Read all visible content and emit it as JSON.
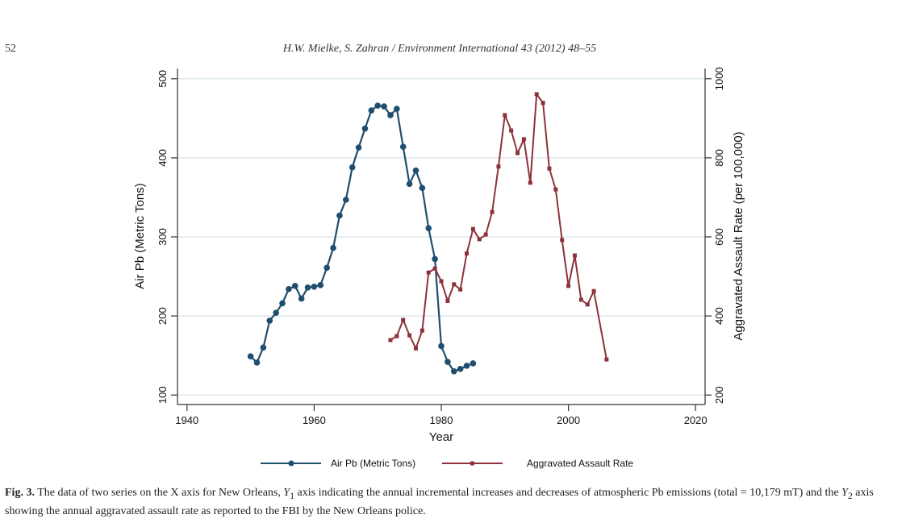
{
  "header": {
    "page_number": "52",
    "running_head": "H.W. Mielke, S. Zahran / Environment International 43 (2012) 48–55"
  },
  "caption": {
    "label": "Fig. 3.",
    "text_part1": " The data of two series on the X axis for New Orleans, ",
    "y1_symbol": "Y",
    "y1_sub": "1",
    "text_part2": " axis indicating the annual incremental increases and decreases of atmospheric Pb emissions (total = 10,179 mT) and the ",
    "y2_symbol": "Y",
    "y2_sub": "2",
    "text_part3": " axis showing the annual aggravated assault rate as reported to the FBI by the New Orleans police."
  },
  "chart_data": {
    "type": "line",
    "title": "",
    "xlabel": "Year",
    "ylabel": "Air Pb (Metric Tons)",
    "y2label": "Aggravated Assault Rate (per 100,000)",
    "xlim": [
      1938.5,
      2021.5
    ],
    "ylim": [
      88,
      513
    ],
    "y2lim": [
      176,
      1026
    ],
    "x_ticks": [
      1940,
      1960,
      1980,
      2000,
      2020
    ],
    "y_ticks": [
      100,
      200,
      300,
      400,
      500
    ],
    "y2_ticks": [
      200,
      400,
      600,
      800,
      1000
    ],
    "grid": true,
    "legend_position": "bottom",
    "series": [
      {
        "name": "Air Pb (Metric Tons)",
        "axis": "left",
        "color": "#1f4e6e",
        "marker": "circle",
        "x": [
          1950,
          1951,
          1952,
          1953,
          1954,
          1955,
          1956,
          1957,
          1958,
          1959,
          1960,
          1961,
          1962,
          1963,
          1964,
          1965,
          1966,
          1967,
          1968,
          1969,
          1970,
          1971,
          1972,
          1973,
          1974,
          1975,
          1976,
          1977,
          1978,
          1979,
          1980,
          1981,
          1982,
          1983,
          1984,
          1985
        ],
        "values": [
          149,
          141,
          160,
          194,
          204,
          216,
          234,
          238,
          222,
          236,
          237,
          239,
          261,
          286,
          327,
          347,
          388,
          413,
          437,
          460,
          466,
          465,
          454,
          462,
          414,
          367,
          384,
          362,
          311,
          272,
          162,
          142,
          130,
          133,
          137,
          140
        ]
      },
      {
        "name": "Aggravated Assault Rate",
        "axis": "right",
        "color": "#8c3239",
        "marker": "square",
        "x": [
          1972,
          1973,
          1974,
          1975,
          1976,
          1977,
          1978,
          1979,
          1980,
          1981,
          1982,
          1983,
          1984,
          1985,
          1986,
          1987,
          1988,
          1989,
          1990,
          1991,
          1992,
          1993,
          1994,
          1995,
          1996,
          1997,
          1998,
          1999,
          2000,
          2001,
          2002,
          2003,
          2004,
          2006
        ],
        "values": [
          339,
          349,
          390,
          351,
          318,
          363,
          510,
          520,
          488,
          438,
          480,
          467,
          558,
          620,
          594,
          606,
          663,
          778,
          908,
          869,
          812,
          847,
          737,
          961,
          939,
          773,
          720,
          592,
          476,
          553,
          441,
          429,
          463,
          290
        ]
      }
    ]
  }
}
